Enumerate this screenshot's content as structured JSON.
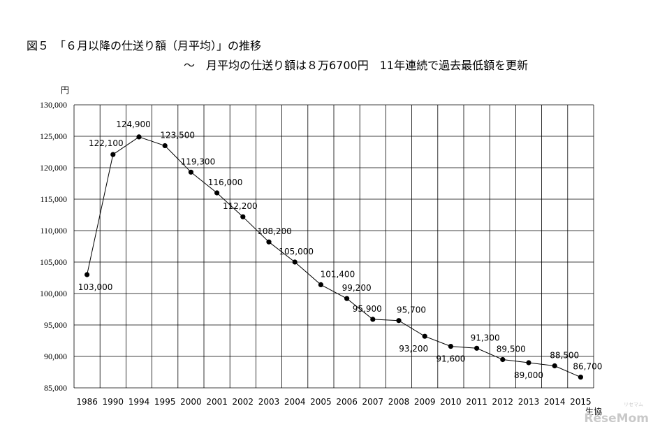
{
  "header": {
    "title": "図５　「６月以降の仕送り額（月平均）」の推移",
    "subtitle": "～　月平均の仕送り額は８万6700円　11年連続で過去最低額を更新"
  },
  "chart_data": {
    "type": "line",
    "title": "図５　「６月以降の仕送り額（月平均）」の推移",
    "subtitle": "～　月平均の仕送り額は８万6700円　11年連続で過去最低額を更新",
    "ylabel": "円",
    "xlabel": "",
    "categories": [
      "1986",
      "1990",
      "1994",
      "1995",
      "2000",
      "2001",
      "2002",
      "2003",
      "2004",
      "2005",
      "2006",
      "2007",
      "2008",
      "2009",
      "2010",
      "2011",
      "2012",
      "2013",
      "2014",
      "2015"
    ],
    "series": [
      {
        "values": [
          103000,
          122100,
          124900,
          123500,
          119300,
          116000,
          112200,
          108200,
          105000,
          101400,
          99200,
          95900,
          95700,
          93200,
          91600,
          91300,
          89500,
          89000,
          88500,
          86700
        ]
      }
    ],
    "data_labels": [
      "103,000",
      "122,100",
      "124,900",
      "123,500",
      "119,300",
      "116,000",
      "112,200",
      "108,200",
      "105,000",
      "101,400",
      "99,200",
      "95,900",
      "95,700",
      "93,200",
      "91,600",
      "91,300",
      "89,500",
      "89,000",
      "88,500",
      "86,700"
    ],
    "ylim": [
      85000,
      130000
    ],
    "yticks": [
      85000,
      90000,
      95000,
      100000,
      105000,
      110000,
      115000,
      120000,
      125000,
      130000
    ],
    "ytick_labels": [
      "85,000",
      "90,000",
      "95,000",
      "100,000",
      "105,000",
      "110,000",
      "115,000",
      "120,000",
      "125,000",
      "130,000"
    ],
    "grid": true,
    "line_color": "#000000"
  },
  "watermark": {
    "text": "ReseMom",
    "small_text": "リセマム"
  },
  "source_fragment": "生協"
}
